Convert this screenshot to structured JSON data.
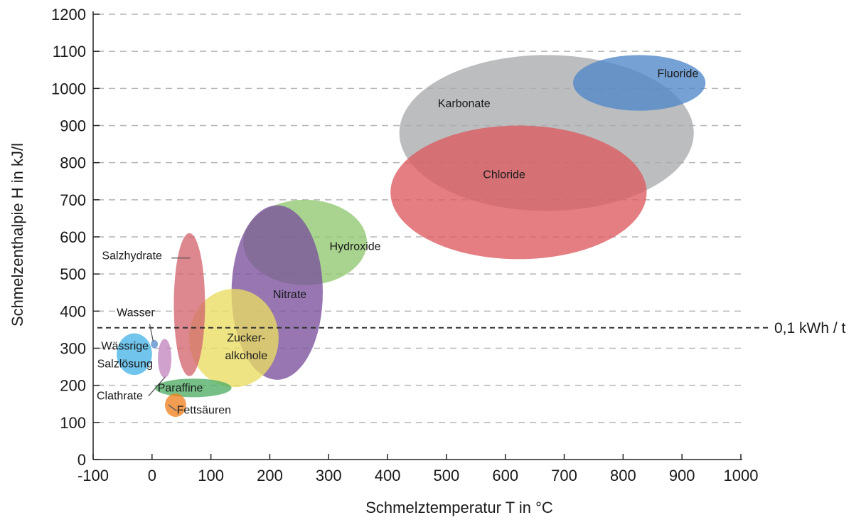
{
  "chart_data": {
    "type": "bubble-region",
    "xlabel": "Schmelztemperatur T in °C",
    "ylabel": "Schmelzenthalpie H in kJ/l",
    "xlim": [
      -100,
      1000
    ],
    "ylim": [
      0,
      1200
    ],
    "xticks": [
      -100,
      0,
      100,
      200,
      300,
      400,
      500,
      600,
      700,
      800,
      900,
      1000
    ],
    "yticks": [
      0,
      100,
      200,
      300,
      400,
      500,
      600,
      700,
      800,
      900,
      1000,
      1100,
      1200
    ],
    "grid": "horizontal dashed",
    "reference_line": {
      "y": 355,
      "label": "0,1 kWh / t"
    },
    "regions": [
      {
        "name": "Karbonate",
        "x_range": [
          420,
          920
        ],
        "y_range": [
          670,
          1090
        ],
        "color": "#a9aaac",
        "label": [
          "Karbonate"
        ]
      },
      {
        "name": "Chloride",
        "x_range": [
          405,
          840
        ],
        "y_range": [
          540,
          900
        ],
        "color": "#dc5a60",
        "label": [
          "Chloride"
        ]
      },
      {
        "name": "Fluoride",
        "x_range": [
          715,
          940
        ],
        "y_range": [
          940,
          1090
        ],
        "color": "#4f86c9",
        "label": [
          "Fluoride"
        ]
      },
      {
        "name": "Hydroxide",
        "x_range": [
          155,
          365
        ],
        "y_range": [
          470,
          700
        ],
        "color": "#8fc870",
        "label": [
          "Hydroxide"
        ]
      },
      {
        "name": "Nitrate",
        "x_range": [
          135,
          290
        ],
        "y_range": [
          215,
          685
        ],
        "color": "#7a4f9c",
        "label": [
          "Nitrate"
        ]
      },
      {
        "name": "Zuckeralkohole",
        "x_range": [
          63,
          215
        ],
        "y_range": [
          195,
          460
        ],
        "color": "#e9dc62",
        "label": [
          "Zucker-",
          "alkohole"
        ]
      },
      {
        "name": "Salzhydrate",
        "x_range": [
          37,
          90
        ],
        "y_range": [
          225,
          610
        ],
        "color": "#d2676e",
        "label": [
          "Salzhydrate"
        ]
      },
      {
        "name": "Wässrige Salzlösung",
        "x_range": [
          -60,
          0
        ],
        "y_range": [
          228,
          340
        ],
        "color": "#49b3e5",
        "label": [
          "Wässrige",
          "Salzlösung"
        ]
      },
      {
        "name": "Clathrate",
        "x_range": [
          10,
          33
        ],
        "y_range": [
          220,
          325
        ],
        "color": "#c486c0",
        "label": [
          "Clathrate"
        ]
      },
      {
        "name": "Wasser",
        "x_range": [
          -2,
          10
        ],
        "y_range": [
          300,
          322
        ],
        "color": "#5b8fcf",
        "label": [
          "Wasser"
        ]
      },
      {
        "name": "Paraffine",
        "x_range": [
          5,
          135
        ],
        "y_range": [
          168,
          218
        ],
        "color": "#4fae66",
        "label": [
          "Paraffine"
        ]
      },
      {
        "name": "Fettsäuren",
        "x_range": [
          22,
          58
        ],
        "y_range": [
          115,
          178
        ],
        "color": "#ee8220",
        "label": [
          "Fettsäuren"
        ]
      }
    ]
  }
}
